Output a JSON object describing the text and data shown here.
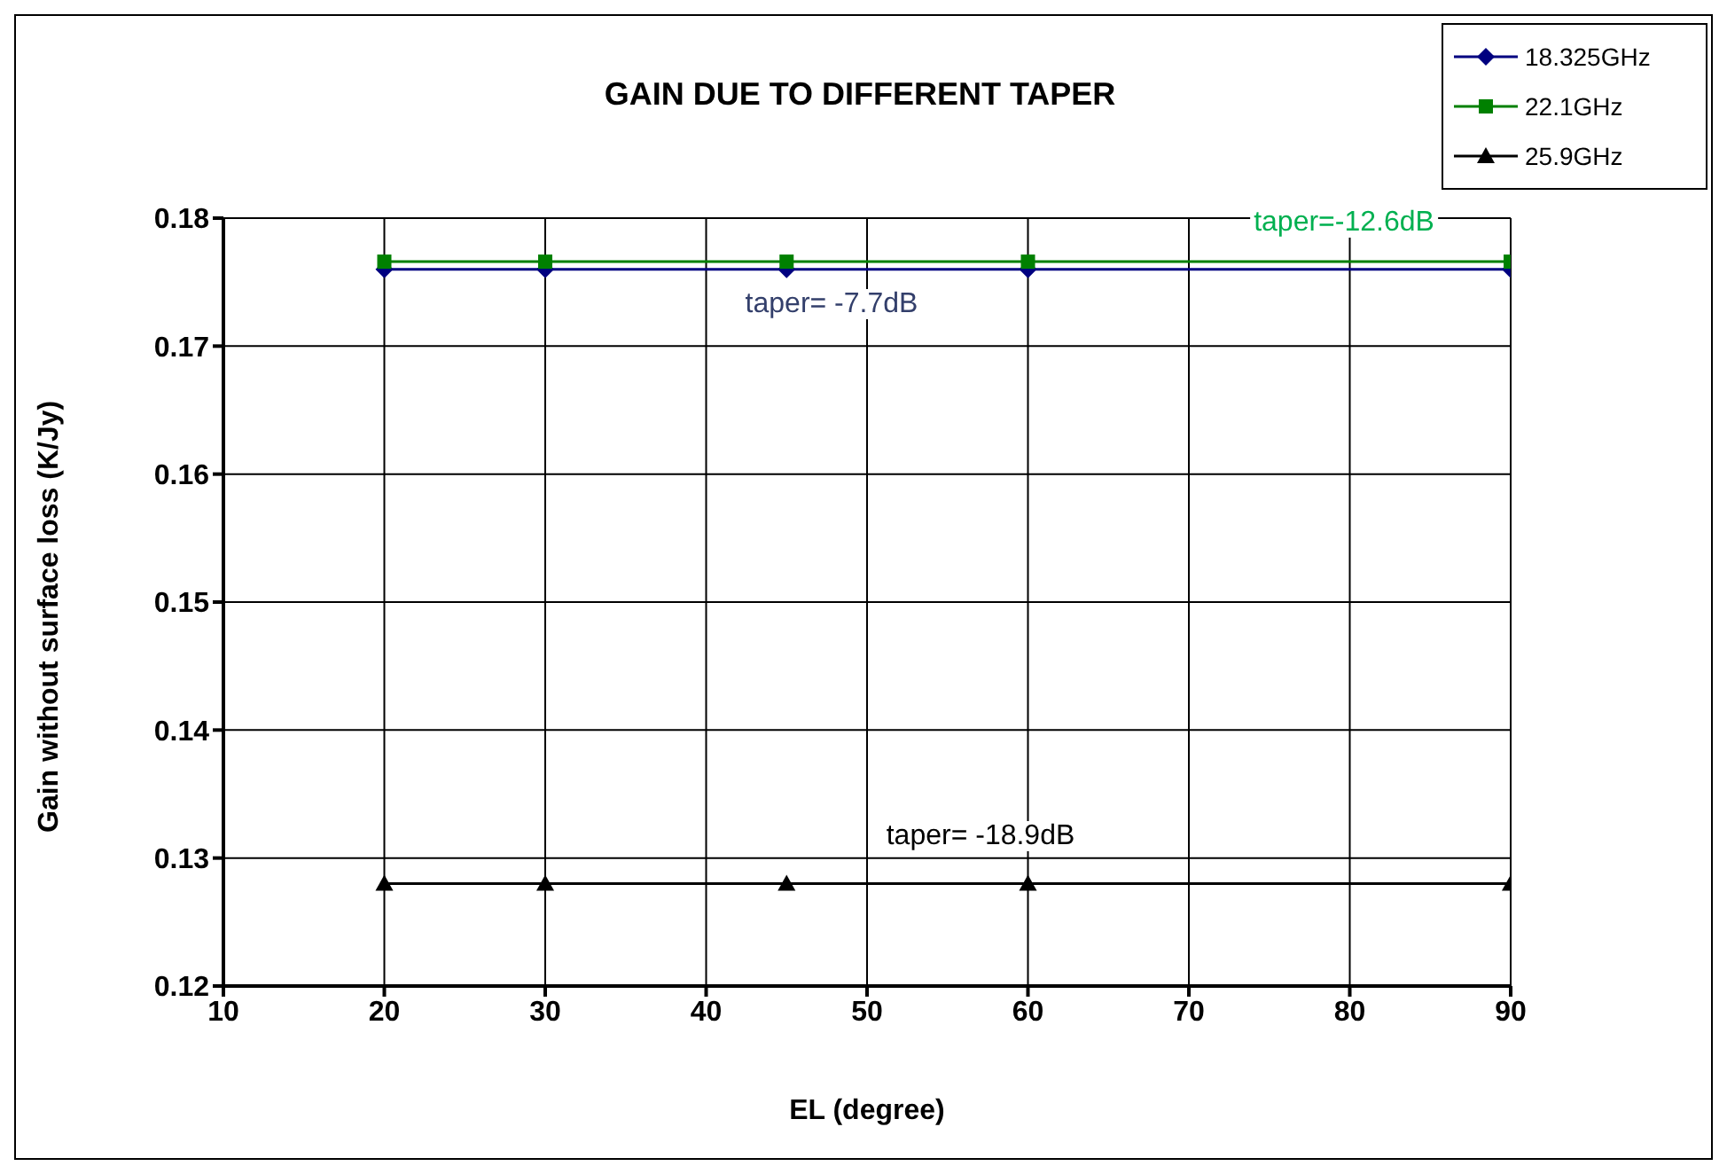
{
  "chart_data": {
    "type": "line",
    "title": "GAIN DUE TO DIFFERENT TAPER",
    "xlabel": "EL (degree)",
    "ylabel": "Gain without surface  loss (K/Jy)",
    "x": [
      20,
      30,
      45,
      60,
      90
    ],
    "series": [
      {
        "name": "18.325GHz",
        "color": "#000080",
        "marker": "diamond",
        "values": [
          0.176,
          0.176,
          0.176,
          0.176,
          0.176
        ]
      },
      {
        "name": "22.1GHz",
        "color": "#008000",
        "marker": "square",
        "values": [
          0.1766,
          0.1766,
          0.1766,
          0.1766,
          0.1766
        ]
      },
      {
        "name": "25.9GHz",
        "color": "#000000",
        "marker": "triangle",
        "values": [
          0.128,
          0.128,
          0.128,
          0.128,
          0.128
        ]
      }
    ],
    "annotations": [
      "taper= -7.7dB",
      "taper=-12.6dB",
      "taper= -18.9dB"
    ],
    "xlim": [
      10,
      90
    ],
    "xticks": [
      10,
      20,
      30,
      40,
      50,
      60,
      70,
      80,
      90
    ],
    "ylim": [
      0.12,
      0.18
    ],
    "yticks": [
      0.12,
      0.13,
      0.14,
      0.15,
      0.16,
      0.17,
      0.18
    ],
    "grid": true,
    "legend": "top right"
  }
}
